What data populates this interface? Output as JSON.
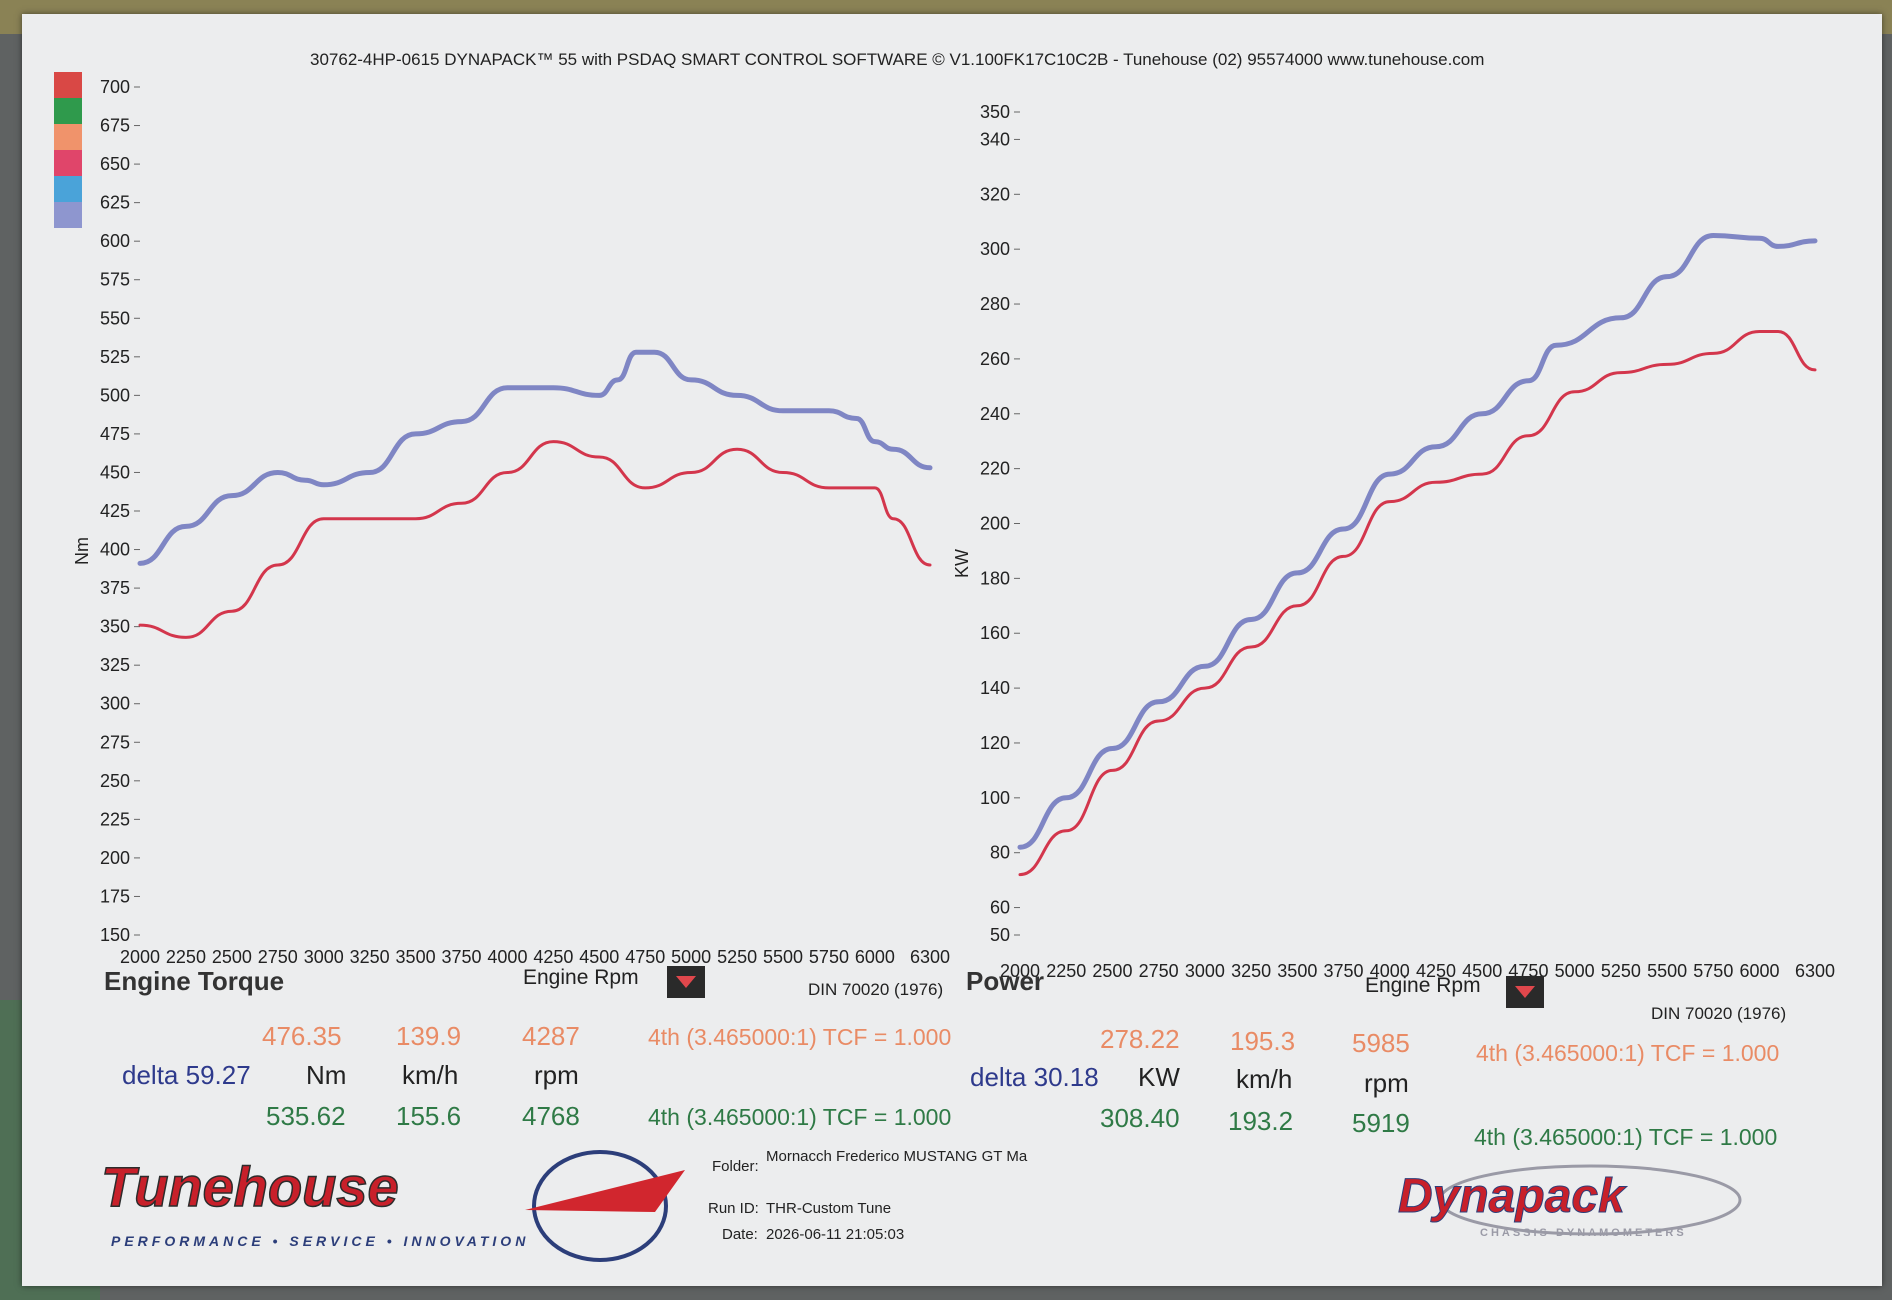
{
  "header": "30762-4HP-0615 DYNAPACK™ 55 with PSDAQ SMART CONTROL SOFTWARE © V1.100FK17C10C2B - Tunehouse (02) 95574000  www.tunehouse.com",
  "colors": {
    "blue_run": "#7f86c4",
    "red_run": "#d3364c",
    "legend_swatches": [
      "#d94845",
      "#2f9a4c",
      "#f0936b",
      "#e0456a",
      "#4aa3d9",
      "#8e96cf"
    ]
  },
  "chart_data": [
    {
      "type": "line",
      "title": "Engine Torque",
      "xlabel": "Engine Rpm",
      "ylabel": "Nm",
      "standard": "DIN 70020 (1976)",
      "xlim": [
        2000,
        6300
      ],
      "ylim": [
        150,
        700
      ],
      "x_ticks": [
        "2000",
        "2250",
        "2500",
        "2750",
        "3000",
        "3250",
        "3500",
        "3750",
        "4000",
        "4250",
        "4500",
        "4750",
        "5000",
        "5250",
        "5500",
        "5750",
        "6000",
        "6300"
      ],
      "y_ticks": [
        "150",
        "175",
        "200",
        "225",
        "250",
        "275",
        "300",
        "325",
        "350",
        "375",
        "400",
        "425",
        "450",
        "475",
        "500",
        "525",
        "550",
        "575",
        "600",
        "625",
        "650",
        "675",
        "700"
      ],
      "series": [
        {
          "color": "#7f86c4",
          "x": [
            2000,
            2250,
            2500,
            2750,
            2900,
            3000,
            3250,
            3500,
            3750,
            4000,
            4250,
            4500,
            4600,
            4700,
            4800,
            5000,
            5250,
            5500,
            5750,
            5900,
            6000,
            6100,
            6300
          ],
          "y": [
            391,
            415,
            435,
            450,
            445,
            442,
            450,
            475,
            483,
            505,
            505,
            500,
            510,
            528,
            528,
            510,
            500,
            490,
            490,
            485,
            470,
            465,
            453
          ]
        },
        {
          "color": "#d3364c",
          "x": [
            2000,
            2250,
            2500,
            2750,
            3000,
            3250,
            3500,
            3750,
            4000,
            4250,
            4500,
            4750,
            5000,
            5250,
            5500,
            5750,
            6000,
            6100,
            6300
          ],
          "y": [
            351,
            343,
            360,
            390,
            420,
            420,
            420,
            430,
            450,
            470,
            460,
            440,
            450,
            465,
            450,
            440,
            440,
            420,
            390
          ]
        }
      ]
    },
    {
      "type": "line",
      "title": "Power",
      "xlabel": "Engine Rpm",
      "ylabel": "KW",
      "standard": "DIN 70020 (1976)",
      "xlim": [
        2000,
        6300
      ],
      "ylim": [
        50,
        350
      ],
      "x_ticks": [
        "2000",
        "2250",
        "2500",
        "2750",
        "3000",
        "3250",
        "3500",
        "3750",
        "4000",
        "4250",
        "4500",
        "4750",
        "5000",
        "5250",
        "5500",
        "5750",
        "6000",
        "6300"
      ],
      "y_ticks": [
        "50",
        "60",
        "80",
        "100",
        "120",
        "140",
        "160",
        "180",
        "200",
        "220",
        "240",
        "260",
        "280",
        "300",
        "320",
        "340",
        "350"
      ],
      "series": [
        {
          "color": "#7f86c4",
          "x": [
            2000,
            2250,
            2500,
            2750,
            3000,
            3250,
            3500,
            3750,
            4000,
            4250,
            4500,
            4750,
            4900,
            5250,
            5500,
            5750,
            6000,
            6100,
            6300
          ],
          "y": [
            82,
            100,
            118,
            135,
            148,
            165,
            182,
            198,
            218,
            228,
            240,
            252,
            265,
            275,
            290,
            305,
            304,
            301,
            303
          ]
        },
        {
          "color": "#d3364c",
          "x": [
            2000,
            2250,
            2500,
            2750,
            3000,
            3250,
            3500,
            3750,
            4000,
            4250,
            4500,
            4750,
            5000,
            5250,
            5500,
            5750,
            6000,
            6100,
            6300
          ],
          "y": [
            72,
            88,
            110,
            128,
            140,
            155,
            170,
            188,
            208,
            215,
            218,
            232,
            248,
            255,
            258,
            262,
            270,
            270,
            256
          ]
        }
      ]
    }
  ],
  "torque_readout": {
    "top": {
      "value": "476.35",
      "speed": "139.9",
      "rpm": "4287",
      "gear": "4th (3.465000:1) TCF = 1.000"
    },
    "delta": "delta 59.27",
    "units": {
      "value": "Nm",
      "speed": "km/h",
      "rpm": "rpm"
    },
    "bottom": {
      "value": "535.62",
      "speed": "155.6",
      "rpm": "4768",
      "gear": "4th (3.465000:1) TCF = 1.000"
    }
  },
  "power_readout": {
    "top": {
      "value": "278.22",
      "speed": "195.3",
      "rpm": "5985",
      "gear": "4th (3.465000:1) TCF = 1.000"
    },
    "delta": "delta 30.18",
    "units": {
      "value": "KW",
      "speed": "km/h",
      "rpm": "rpm"
    },
    "bottom": {
      "value": "308.40",
      "speed": "193.2",
      "rpm": "5919",
      "gear": "4th (3.465000:1) TCF = 1.000"
    }
  },
  "run_info": {
    "folder_label": "Folder:",
    "folder_value": "Mornacch Frederico MUSTANG GT Ma",
    "run_label": "Run ID:",
    "run_value": "THR-Custom Tune",
    "date_label": "Date:",
    "date_value": "2026-06-11 21:05:03"
  },
  "logos": {
    "tunehouse": "Tunehouse",
    "tunehouse_tagline": "PERFORMANCE • SERVICE • INNOVATION",
    "dynapack": "Dynapack",
    "dynapack_tagline": "CHASSIS DYNAMOMETERS"
  }
}
